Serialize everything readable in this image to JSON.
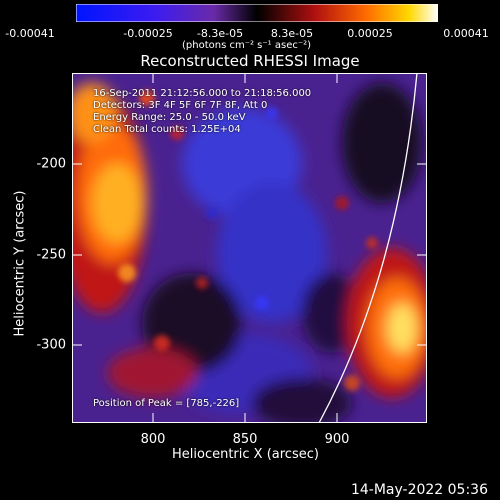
{
  "colorbar": {
    "tick_labels": [
      "-0.00041",
      "-0.00025",
      "-8.3e-05",
      "8.3e-05",
      "0.00025",
      "0.00041"
    ],
    "units_label": "(photons cm⁻² s⁻¹ asec⁻²)"
  },
  "title": "Reconstructed RHESSI Image",
  "info": {
    "time_range": "16-Sep-2011 21:12:56.000 to 21:18:56.000",
    "detectors": "Detectors: 3F 4F 5F 6F 7F 8F, Att 0",
    "energy_range": "Energy Range: 25.0 - 50.0 keV",
    "clean_counts": "Clean     Total counts: 1.25E+04",
    "peak_position": "Position of Peak = [785,-226]"
  },
  "axes": {
    "y_label": "Heliocentric Y (arcsec)",
    "x_label": "Heliocentric X (arcsec)",
    "y_ticks": [
      "-200",
      "-250",
      "-300"
    ],
    "x_ticks": [
      "800",
      "850",
      "900"
    ]
  },
  "timestamp": "14-May-2022 05:36"
}
